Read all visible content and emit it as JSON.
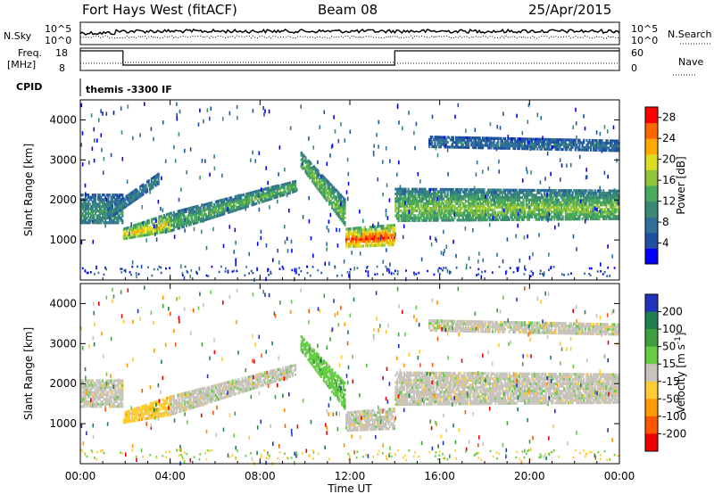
{
  "header": {
    "station": "Fort Hays West (fitACF)",
    "beam": "Beam 08",
    "date": "25/Apr/2015"
  },
  "strip_labels": {
    "nsky": "N.Sky",
    "nsky_ticks": [
      "10^5",
      "10^0"
    ],
    "nsearch": "N.Search",
    "nsearch_ticks": [
      "10^5",
      "10^0"
    ],
    "freq_line1": "Freq.",
    "freq_line2": "[MHz]",
    "freq_ticks": [
      "18",
      "8"
    ],
    "nave": "Nave",
    "nave_ticks": [
      "60",
      "0"
    ],
    "cpid": "CPID",
    "cpid_value": "themis -3300 IF"
  },
  "x_axis": {
    "title": "Time UT",
    "tick_labels": [
      "00:00",
      "04:00",
      "08:00",
      "12:00",
      "16:00",
      "20:00",
      "00:00"
    ],
    "range_hours": [
      0,
      24
    ]
  },
  "chart_data": [
    {
      "type": "heatmap",
      "panel": "power",
      "ylabel": "Slant Range [km]",
      "ylim": [
        0,
        4500
      ],
      "yticks": [
        1000,
        2000,
        3000,
        4000
      ],
      "x_range_hours": [
        0,
        24
      ],
      "colorbar_label": "Power [dB]",
      "colorbar_ticks": [
        "28",
        "24",
        "20",
        "16",
        "12",
        "8",
        "4"
      ],
      "colorbar_range": [
        0,
        30
      ],
      "colors": [
        "#0000ff",
        "#1f4fa0",
        "#2f6f9a",
        "#3b8a74",
        "#49a95c",
        "#8fc43c",
        "#dddd22",
        "#ffaa00",
        "#ff6600",
        "#ff0000"
      ],
      "bands": [
        {
          "x": [
            0.0,
            1.9
          ],
          "y_low": [
            1400,
            1400
          ],
          "y_high": [
            2150,
            2150
          ],
          "level": 10
        },
        {
          "x": [
            1.9,
            4.0
          ],
          "y_low": [
            1000,
            1200
          ],
          "y_high": [
            1300,
            1700
          ],
          "level": 18
        },
        {
          "x": [
            4.0,
            9.6
          ],
          "y_low": [
            1200,
            2200
          ],
          "y_high": [
            1700,
            2500
          ],
          "level": 12
        },
        {
          "x": [
            1.2,
            3.5
          ],
          "y_low": [
            1500,
            2400
          ],
          "y_high": [
            1800,
            2700
          ],
          "level": 8
        },
        {
          "x": [
            9.8,
            11.8
          ],
          "y_low": [
            2800,
            1300
          ],
          "y_high": [
            3200,
            2000
          ],
          "level": 14
        },
        {
          "x": [
            11.8,
            14.0
          ],
          "y_low": [
            800,
            850
          ],
          "y_high": [
            1300,
            1400
          ],
          "level": 24
        },
        {
          "x": [
            14.0,
            24.0
          ],
          "y_low": [
            1450,
            1500
          ],
          "y_high": [
            2300,
            2250
          ],
          "level": 14
        },
        {
          "x": [
            15.5,
            24.0
          ],
          "y_low": [
            3300,
            3200
          ],
          "y_high": [
            3600,
            3500
          ],
          "level": 6
        }
      ]
    },
    {
      "type": "heatmap",
      "panel": "velocity",
      "ylabel": "Slant Range [km]",
      "ylim": [
        0,
        4500
      ],
      "yticks": [
        1000,
        2000,
        3000,
        4000
      ],
      "x_range_hours": [
        0,
        24
      ],
      "colorbar_label": "Velocity [m s^-1]",
      "colorbar_ticks": [
        "200",
        "100",
        "50",
        "15",
        "-15",
        "-50",
        "-100",
        "-200"
      ],
      "colors": [
        "#2233bb",
        "#1f7f4f",
        "#3f9f3f",
        "#66cc44",
        "#c8c4bc",
        "#ffcc33",
        "#ff9900",
        "#ff5500",
        "#ee0000"
      ],
      "bands": [
        {
          "x": [
            0.0,
            1.9
          ],
          "y_low": [
            1400,
            1400
          ],
          "y_high": [
            2100,
            2100
          ],
          "level": 4
        },
        {
          "x": [
            1.9,
            4.0
          ],
          "y_low": [
            1000,
            1200
          ],
          "y_high": [
            1300,
            1700
          ],
          "level": 5
        },
        {
          "x": [
            4.0,
            9.6
          ],
          "y_low": [
            1200,
            2200
          ],
          "y_high": [
            1700,
            2500
          ],
          "level": 4
        },
        {
          "x": [
            9.8,
            11.8
          ],
          "y_low": [
            2800,
            1300
          ],
          "y_high": [
            3200,
            2000
          ],
          "level": 3
        },
        {
          "x": [
            11.8,
            14.0
          ],
          "y_low": [
            800,
            850
          ],
          "y_high": [
            1300,
            1400
          ],
          "level": 4
        },
        {
          "x": [
            14.0,
            24.0
          ],
          "y_low": [
            1450,
            1500
          ],
          "y_high": [
            2300,
            2250
          ],
          "level": 4
        },
        {
          "x": [
            15.5,
            24.0
          ],
          "y_low": [
            3300,
            3200
          ],
          "y_high": [
            3600,
            3500
          ],
          "level": 4
        }
      ]
    }
  ]
}
